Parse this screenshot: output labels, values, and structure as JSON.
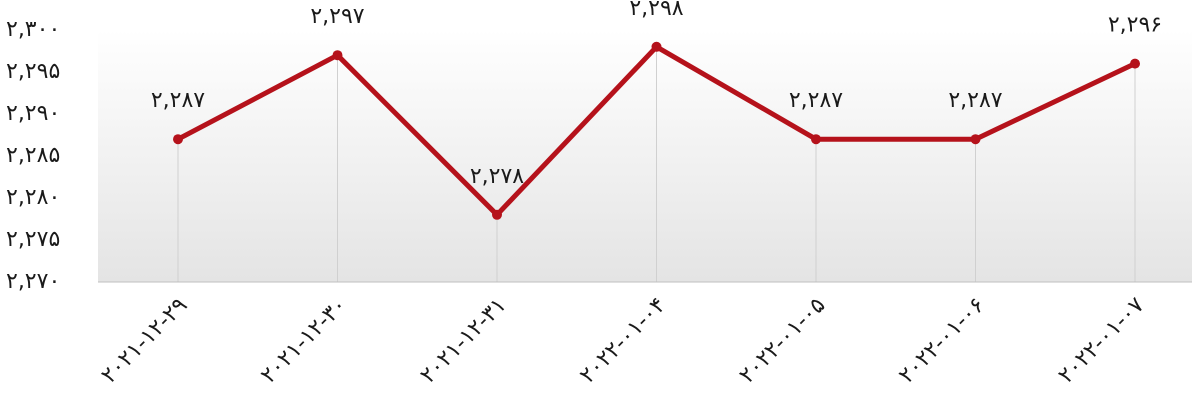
{
  "chart_data": {
    "type": "line",
    "categories": [
      "۲۰۲۱-۱۲-۲۹",
      "۲۰۲۱-۱۲-۳۰",
      "۲۰۲۱-۱۲-۳۱",
      "۲۰۲۲-۰۱-۰۴",
      "۲۰۲۲-۰۱-۰۵",
      "۲۰۲۲-۰۱-۰۶",
      "۲۰۲۲-۰۱-۰۷"
    ],
    "values": [
      2287,
      2297,
      2278,
      2298,
      2287,
      2287,
      2296
    ],
    "data_labels": [
      "۲,۲۸۷",
      "۲,۲۹۷",
      "۲,۲۷۸",
      "۲,۲۹۸",
      "۲,۲۸۷",
      "۲,۲۸۷",
      "۲,۲۹۶"
    ],
    "ylim": [
      2270,
      2300
    ],
    "yticks": [
      2270,
      2275,
      2280,
      2285,
      2290,
      2295,
      2300
    ],
    "ytick_labels": [
      "۲,۲۷۰",
      "۲,۲۷۵",
      "۲,۲۸۰",
      "۲,۲۸۵",
      "۲,۲۹۰",
      "۲,۲۹۵",
      "۲,۳۰۰"
    ],
    "title": "",
    "xlabel": "",
    "ylabel": "",
    "grid": "vertical drop lines",
    "legend": "none",
    "colors": {
      "line": "#b5121b",
      "plot_bg_top": "#ffffff",
      "plot_bg_bottom": "#e4e4e4",
      "grid": "#d0d0d0",
      "axis": "#bfbfbf"
    }
  }
}
